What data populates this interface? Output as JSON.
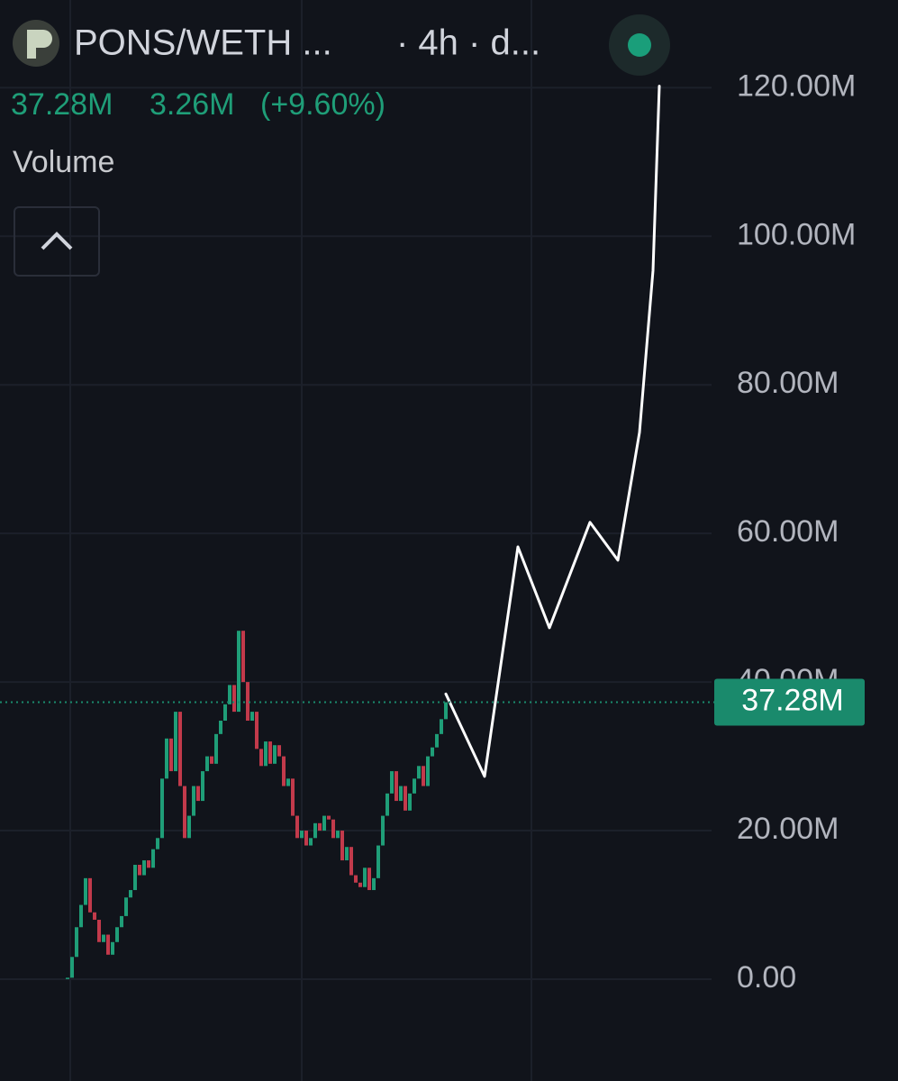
{
  "chart_data": {
    "type": "candlestick",
    "title": "PONS/WETH ...",
    "subtitle": "· 4h · d...",
    "indicator": "Volume",
    "last": {
      "value": 37.28,
      "label": "37.28M"
    },
    "change": {
      "value": 3.26,
      "label": "3.26M"
    },
    "change_pct": {
      "value": 9.6,
      "label": "(+9.60%)"
    },
    "xlim": [
      -15,
      145
    ],
    "ylim": [
      -13.7,
      131.8
    ],
    "yticks": [
      {
        "value": 0,
        "label": "0.00"
      },
      {
        "value": 20,
        "label": "20.00M"
      },
      {
        "value": 40,
        "label": "40.00M"
      },
      {
        "value": 60,
        "label": "60.00M"
      },
      {
        "value": 80,
        "label": "80.00M"
      },
      {
        "value": 100,
        "label": "100.00M"
      },
      {
        "value": 120,
        "label": "120.00M"
      }
    ],
    "grid": true,
    "series": [
      {
        "type": "candlestick",
        "up_color": "#1f9e78",
        "down_color": "#c23a4b",
        "values": [
          0.2,
          3,
          7,
          10,
          13.6,
          9,
          8,
          5,
          6,
          3.3,
          5,
          7,
          8.5,
          11,
          12,
          15.4,
          14,
          16,
          15,
          17.5,
          19,
          27,
          32.4,
          28,
          36,
          26,
          19,
          22,
          26,
          24,
          28,
          30,
          29,
          33,
          34.8,
          37,
          39.6,
          36,
          46.9,
          40,
          34.8,
          36,
          31,
          28.7,
          32,
          29,
          31.5,
          30,
          26,
          27,
          22,
          19,
          20,
          18,
          19,
          21,
          20,
          22,
          21.5,
          19,
          20,
          16,
          17.8,
          14,
          13,
          12.4,
          15,
          12,
          13.6,
          18,
          22,
          25,
          28,
          24,
          26,
          22.7,
          25,
          27,
          28.7,
          26,
          30,
          31.2,
          33,
          35,
          37.28
        ]
      },
      {
        "type": "line",
        "color": "#ffffff",
        "x": [
          84,
          92.6,
          100,
          107,
          116,
          122.2,
          127,
          130,
          131.4
        ],
        "values": [
          38.4,
          27.3,
          58.2,
          47.3,
          61.5,
          56.4,
          73.6,
          95.4,
          120.2
        ]
      }
    ]
  }
}
